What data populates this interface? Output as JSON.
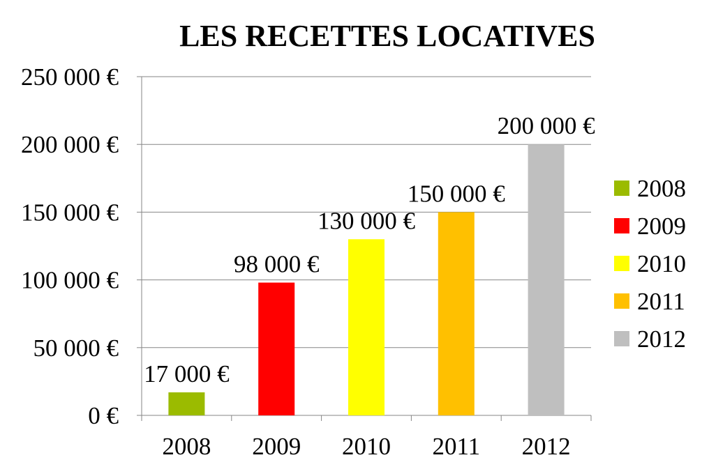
{
  "chart_data": {
    "type": "bar",
    "title": "LES RECETTES LOCATIVES",
    "xlabel": "",
    "ylabel": "",
    "categories": [
      "2008",
      "2009",
      "2010",
      "2011",
      "2012"
    ],
    "values": [
      17000,
      98000,
      130000,
      150000,
      200000
    ],
    "data_labels": [
      "17 000 €",
      "98 000 €",
      "130 000 €",
      "150 000 €",
      "200 000 €"
    ],
    "colors": [
      "#9BBB00",
      "#FF0000",
      "#FFFF00",
      "#FFC000",
      "#BFBFBF"
    ],
    "ylim": [
      0,
      250000
    ],
    "yticks": [
      0,
      50000,
      100000,
      150000,
      200000,
      250000
    ],
    "ytick_labels": [
      "0 €",
      "50 000 €",
      "100 000 €",
      "150 000 €",
      "200 000 €",
      "250 000 €"
    ],
    "grid": true,
    "legend": {
      "position": "right",
      "entries": [
        "2008",
        "2009",
        "2010",
        "2011",
        "2012"
      ]
    }
  }
}
